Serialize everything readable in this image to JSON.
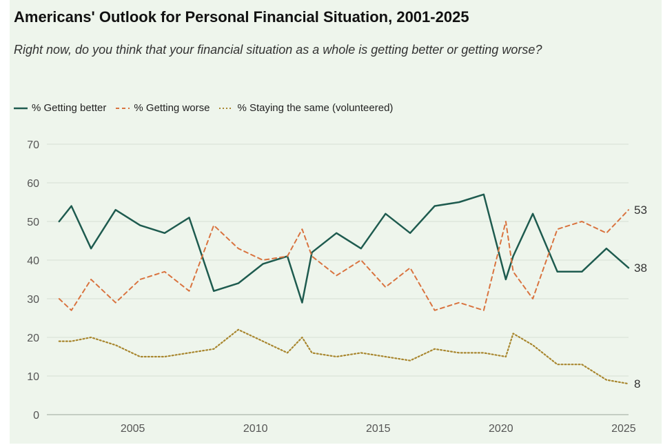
{
  "title": "Americans' Outlook for Personal Financial Situation, 2001-2025",
  "subtitle": "Right now, do you think that your financial situation as a whole is getting better or getting worse?",
  "legend": [
    {
      "label": "% Getting better",
      "style": "solid",
      "color": "#1e5b4f"
    },
    {
      "label": "% Getting worse",
      "style": "dashed",
      "color": "#d9733f"
    },
    {
      "label": "% Staying the same (volunteered)",
      "style": "dotted",
      "color": "#a8862e"
    }
  ],
  "chart_data": {
    "type": "line",
    "xlim": [
      2001.5,
      2025.2
    ],
    "ylim": [
      0,
      70
    ],
    "yticks": [
      0,
      10,
      20,
      30,
      40,
      50,
      60,
      70
    ],
    "xticks": [
      2005,
      2010,
      2015,
      2020,
      2025
    ],
    "grid": true,
    "legend_position": "top-left",
    "series": [
      {
        "name": "% Getting better",
        "color": "#1e5b4f",
        "style": "solid",
        "end_label": "38",
        "x": [
          2002.0,
          2002.5,
          2003.3,
          2004.3,
          2005.3,
          2006.3,
          2007.3,
          2008.3,
          2009.3,
          2010.3,
          2011.3,
          2011.9,
          2012.3,
          2013.3,
          2014.3,
          2015.3,
          2016.3,
          2017.3,
          2018.3,
          2019.3,
          2020.2,
          2020.5,
          2021.3,
          2022.3,
          2023.3,
          2024.3,
          2025.2
        ],
        "values": [
          50,
          54,
          43,
          53,
          49,
          47,
          51,
          32,
          34,
          39,
          41,
          29,
          42,
          47,
          43,
          52,
          47,
          54,
          55,
          57,
          35,
          41,
          52,
          37,
          37,
          43,
          38
        ]
      },
      {
        "name": "% Getting worse",
        "color": "#d9733f",
        "style": "dashed",
        "end_label": "53",
        "x": [
          2002.0,
          2002.5,
          2003.3,
          2004.3,
          2005.3,
          2006.3,
          2007.3,
          2008.3,
          2009.3,
          2010.3,
          2011.3,
          2011.9,
          2012.3,
          2013.3,
          2014.3,
          2015.3,
          2016.3,
          2017.3,
          2018.3,
          2019.3,
          2020.2,
          2020.5,
          2021.3,
          2022.3,
          2023.3,
          2024.3,
          2025.2
        ],
        "values": [
          30,
          27,
          35,
          29,
          35,
          37,
          32,
          49,
          43,
          40,
          41,
          48,
          41,
          36,
          40,
          33,
          38,
          27,
          29,
          27,
          50,
          37,
          30,
          48,
          50,
          47,
          53
        ]
      },
      {
        "name": "% Staying the same (volunteered)",
        "color": "#a8862e",
        "style": "dotted",
        "end_label": "8",
        "x": [
          2002.0,
          2002.5,
          2003.3,
          2004.3,
          2005.3,
          2006.3,
          2007.3,
          2008.3,
          2009.3,
          2010.3,
          2011.3,
          2011.9,
          2012.3,
          2013.3,
          2014.3,
          2015.3,
          2016.3,
          2017.3,
          2018.3,
          2019.3,
          2020.2,
          2020.5,
          2021.3,
          2022.3,
          2023.3,
          2024.3,
          2025.2
        ],
        "values": [
          19,
          19,
          20,
          18,
          15,
          15,
          16,
          17,
          22,
          19,
          16,
          20,
          16,
          15,
          16,
          15,
          14,
          17,
          16,
          16,
          15,
          21,
          18,
          13,
          13,
          9,
          8
        ]
      }
    ]
  }
}
